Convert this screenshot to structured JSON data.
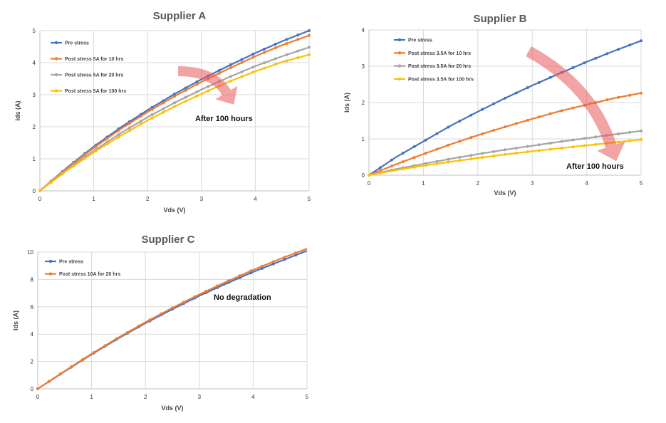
{
  "chart_data": [
    {
      "type": "line",
      "title": "Supplier A",
      "xlabel": "Vds (V)",
      "ylabel": "Ids (A)",
      "xlim": [
        0,
        5
      ],
      "ylim": [
        0,
        5
      ],
      "xticks": [
        "0",
        "1",
        "2",
        "3",
        "4",
        "5"
      ],
      "yticks": [
        "0",
        "1",
        "2",
        "3",
        "4",
        "5"
      ],
      "grid": true,
      "legend_position": "top-left",
      "annotation": "After 100 hours",
      "x": [
        0,
        0.5,
        1,
        1.5,
        2,
        2.5,
        3,
        3.5,
        4,
        4.5,
        5
      ],
      "series": [
        {
          "name": "Pre stress",
          "color": "#4472C4",
          "values": [
            0,
            0.72,
            1.38,
            1.98,
            2.52,
            3.02,
            3.48,
            3.9,
            4.3,
            4.67,
            5.0
          ]
        },
        {
          "name": "Post stress 5A for 10 hrs",
          "color": "#ED7D31",
          "values": [
            0,
            0.7,
            1.34,
            1.93,
            2.46,
            2.95,
            3.4,
            3.81,
            4.2,
            4.55,
            4.85
          ]
        },
        {
          "name": "Post stress 5A for 20 hrs",
          "color": "#A5A5A5",
          "values": [
            0,
            0.66,
            1.25,
            1.8,
            2.3,
            2.75,
            3.16,
            3.54,
            3.89,
            4.2,
            4.48
          ]
        },
        {
          "name": "Post stress 5A for 100 hrs",
          "color": "#FFC000",
          "values": [
            0,
            0.63,
            1.2,
            1.72,
            2.2,
            2.63,
            3.03,
            3.4,
            3.73,
            4.02,
            4.25
          ]
        }
      ]
    },
    {
      "type": "line",
      "title": "Supplier B",
      "xlabel": "Vds (V)",
      "ylabel": "Ids (A)",
      "xlim": [
        0,
        5
      ],
      "ylim": [
        0,
        4
      ],
      "xticks": [
        "0",
        "1",
        "2",
        "3",
        "4",
        "5"
      ],
      "yticks": [
        "0",
        "1",
        "2",
        "3",
        "4"
      ],
      "grid": true,
      "legend_position": "top-left",
      "annotation": "After 100 hours",
      "x": [
        0,
        0.5,
        1,
        1.5,
        2,
        2.5,
        3,
        3.5,
        4,
        4.5,
        5
      ],
      "series": [
        {
          "name": "Pre stress",
          "color": "#4472C4",
          "values": [
            0,
            0.5,
            0.93,
            1.36,
            1.75,
            2.12,
            2.47,
            2.8,
            3.12,
            3.42,
            3.7
          ]
        },
        {
          "name": "Post stress 3.5A for 10 hrs",
          "color": "#ED7D31",
          "values": [
            0,
            0.3,
            0.58,
            0.85,
            1.1,
            1.33,
            1.55,
            1.76,
            1.94,
            2.12,
            2.26
          ]
        },
        {
          "name": "Post stress 3.5A for 20 hrs",
          "color": "#A5A5A5",
          "values": [
            0,
            0.17,
            0.31,
            0.45,
            0.58,
            0.7,
            0.81,
            0.92,
            1.02,
            1.12,
            1.22
          ]
        },
        {
          "name": "Post stress 3.5A for 100 hrs",
          "color": "#FFC000",
          "values": [
            0,
            0.14,
            0.26,
            0.37,
            0.47,
            0.57,
            0.66,
            0.74,
            0.82,
            0.9,
            0.98
          ]
        }
      ]
    },
    {
      "type": "line",
      "title": "Supplier C",
      "xlabel": "Vds (V)",
      "ylabel": "Ids (A)",
      "xlim": [
        0,
        5
      ],
      "ylim": [
        0,
        10
      ],
      "xticks": [
        "0",
        "1",
        "2",
        "3",
        "4",
        "5"
      ],
      "yticks": [
        "0",
        "2",
        "4",
        "6",
        "8",
        "10"
      ],
      "grid": true,
      "legend_position": "top-left",
      "annotation": "No degradation",
      "x": [
        0,
        0.5,
        1,
        1.5,
        2,
        2.5,
        3,
        3.5,
        4,
        4.5,
        5
      ],
      "series": [
        {
          "name": "Pre stress",
          "color": "#4472C4",
          "values": [
            0,
            1.28,
            2.52,
            3.7,
            4.8,
            5.83,
            6.8,
            7.7,
            8.55,
            9.33,
            10.1
          ]
        },
        {
          "name": "Post stress 10A for 20 hrs",
          "color": "#ED7D31",
          "values": [
            0,
            1.3,
            2.56,
            3.75,
            4.87,
            5.92,
            6.9,
            7.83,
            8.7,
            9.5,
            10.25
          ]
        }
      ]
    }
  ]
}
